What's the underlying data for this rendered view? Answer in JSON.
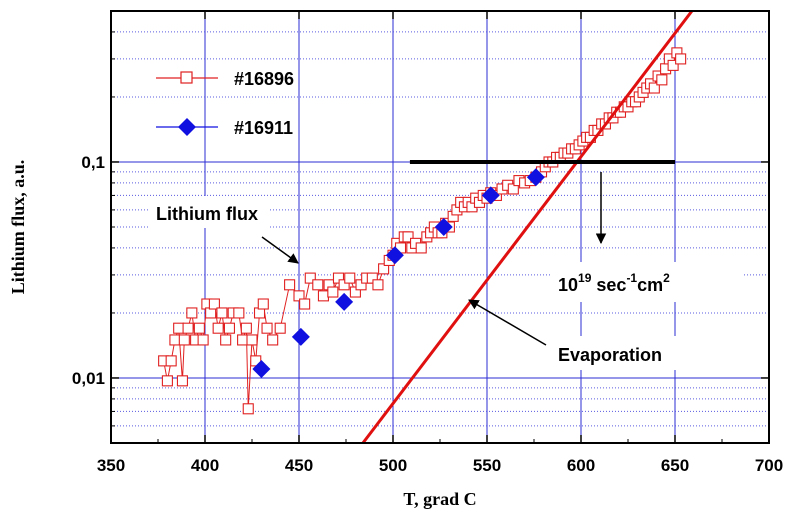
{
  "chart_data": {
    "type": "scatter",
    "title": "",
    "xlabel": "T, grad C",
    "ylabel": "Lithium flux, a.u.",
    "xlim": [
      350,
      700
    ],
    "ylim": [
      0.005,
      0.5
    ],
    "yscale": "log",
    "x_ticks": [
      "350",
      "400",
      "450",
      "500",
      "550",
      "600",
      "650",
      "700"
    ],
    "y_ticks": [
      {
        "value": 0.01,
        "label": "0,01"
      },
      {
        "value": 0.1,
        "label": "0,1"
      }
    ],
    "grid": true,
    "legend_position": "top-left",
    "series": [
      {
        "name": "#16896",
        "marker": "open-square",
        "line": true,
        "color": "#e02020",
        "points": [
          [
            378,
            0.012
          ],
          [
            380,
            0.0097
          ],
          [
            382,
            0.012
          ],
          [
            384,
            0.015
          ],
          [
            386,
            0.017
          ],
          [
            388,
            0.0097
          ],
          [
            389,
            0.015
          ],
          [
            391,
            0.017
          ],
          [
            393,
            0.02
          ],
          [
            395,
            0.015
          ],
          [
            397,
            0.017
          ],
          [
            399,
            0.015
          ],
          [
            401,
            0.022
          ],
          [
            403,
            0.02
          ],
          [
            405,
            0.022
          ],
          [
            407,
            0.017
          ],
          [
            409,
            0.02
          ],
          [
            411,
            0.015
          ],
          [
            413,
            0.017
          ],
          [
            415,
            0.02
          ],
          [
            418,
            0.02
          ],
          [
            420,
            0.015
          ],
          [
            422,
            0.017
          ],
          [
            423,
            0.0072
          ],
          [
            425,
            0.015
          ],
          [
            427,
            0.012
          ],
          [
            429,
            0.02
          ],
          [
            431,
            0.022
          ],
          [
            433,
            0.017
          ],
          [
            436,
            0.015
          ],
          [
            440,
            0.017
          ],
          [
            445,
            0.027
          ],
          [
            450,
            0.024
          ],
          [
            453,
            0.022
          ],
          [
            456,
            0.029
          ],
          [
            460,
            0.027
          ],
          [
            463,
            0.024
          ],
          [
            466,
            0.027
          ],
          [
            468,
            0.025
          ],
          [
            471,
            0.029
          ],
          [
            474,
            0.027
          ],
          [
            477,
            0.029
          ],
          [
            480,
            0.025
          ],
          [
            483,
            0.027
          ],
          [
            486,
            0.029
          ],
          [
            489,
            0.029
          ],
          [
            492,
            0.027
          ],
          [
            495,
            0.032
          ],
          [
            498,
            0.035
          ],
          [
            500,
            0.037
          ],
          [
            502,
            0.042
          ],
          [
            504,
            0.04
          ],
          [
            506,
            0.045
          ],
          [
            508,
            0.045
          ],
          [
            510,
            0.04
          ],
          [
            512,
            0.042
          ],
          [
            515,
            0.04
          ],
          [
            518,
            0.045
          ],
          [
            520,
            0.047
          ],
          [
            522,
            0.05
          ],
          [
            524,
            0.047
          ],
          [
            526,
            0.047
          ],
          [
            528,
            0.052
          ],
          [
            530,
            0.05
          ],
          [
            532,
            0.056
          ],
          [
            534,
            0.06
          ],
          [
            536,
            0.065
          ],
          [
            538,
            0.062
          ],
          [
            540,
            0.065
          ],
          [
            542,
            0.062
          ],
          [
            544,
            0.068
          ],
          [
            546,
            0.065
          ],
          [
            548,
            0.07
          ],
          [
            550,
            0.068
          ],
          [
            552,
            0.072
          ],
          [
            555,
            0.07
          ],
          [
            558,
            0.075
          ],
          [
            561,
            0.078
          ],
          [
            564,
            0.075
          ],
          [
            567,
            0.082
          ],
          [
            570,
            0.08
          ],
          [
            573,
            0.082
          ],
          [
            576,
            0.085
          ],
          [
            579,
            0.09
          ],
          [
            581,
            0.095
          ],
          [
            583,
            0.1
          ],
          [
            585,
            0.1
          ],
          [
            587,
            0.105
          ],
          [
            589,
            0.105
          ],
          [
            591,
            0.11
          ],
          [
            593,
            0.11
          ],
          [
            595,
            0.115
          ],
          [
            597,
            0.115
          ],
          [
            599,
            0.12
          ],
          [
            601,
            0.125
          ],
          [
            603,
            0.13
          ],
          [
            605,
            0.13
          ],
          [
            607,
            0.14
          ],
          [
            609,
            0.14
          ],
          [
            611,
            0.15
          ],
          [
            613,
            0.15
          ],
          [
            615,
            0.16
          ],
          [
            617,
            0.16
          ],
          [
            619,
            0.17
          ],
          [
            621,
            0.17
          ],
          [
            623,
            0.18
          ],
          [
            625,
            0.18
          ],
          [
            627,
            0.19
          ],
          [
            629,
            0.19
          ],
          [
            631,
            0.2
          ],
          [
            633,
            0.21
          ],
          [
            635,
            0.22
          ],
          [
            637,
            0.23
          ],
          [
            639,
            0.22
          ],
          [
            641,
            0.25
          ],
          [
            643,
            0.24
          ],
          [
            645,
            0.27
          ],
          [
            647,
            0.3
          ],
          [
            649,
            0.28
          ],
          [
            651,
            0.32
          ],
          [
            653,
            0.3
          ]
        ]
      },
      {
        "name": "#16911",
        "marker": "filled-diamond",
        "line": false,
        "color": "#1010e0",
        "points": [
          [
            430,
            0.011
          ],
          [
            451,
            0.0155
          ],
          [
            474,
            0.0225
          ],
          [
            501,
            0.037
          ],
          [
            527,
            0.05
          ],
          [
            552,
            0.07
          ],
          [
            576,
            0.085
          ]
        ]
      },
      {
        "name": "Evaporation",
        "type": "line",
        "color": "#e01010",
        "points": [
          [
            484,
            0.005
          ],
          [
            659,
            0.5
          ]
        ]
      },
      {
        "name": "10^19 sec^-1 cm^2",
        "type": "line",
        "color": "#000000",
        "points": [
          [
            509,
            0.1
          ],
          [
            650,
            0.1
          ]
        ]
      }
    ],
    "annotations": {
      "lithium_flux": "Lithium flux",
      "evaporation": "Evaporation",
      "threshold_base": "10",
      "threshold_exp1": "19",
      "threshold_mid1": " sec",
      "threshold_exp2": "-1",
      "threshold_mid2": "cm",
      "threshold_exp3": "2"
    }
  }
}
